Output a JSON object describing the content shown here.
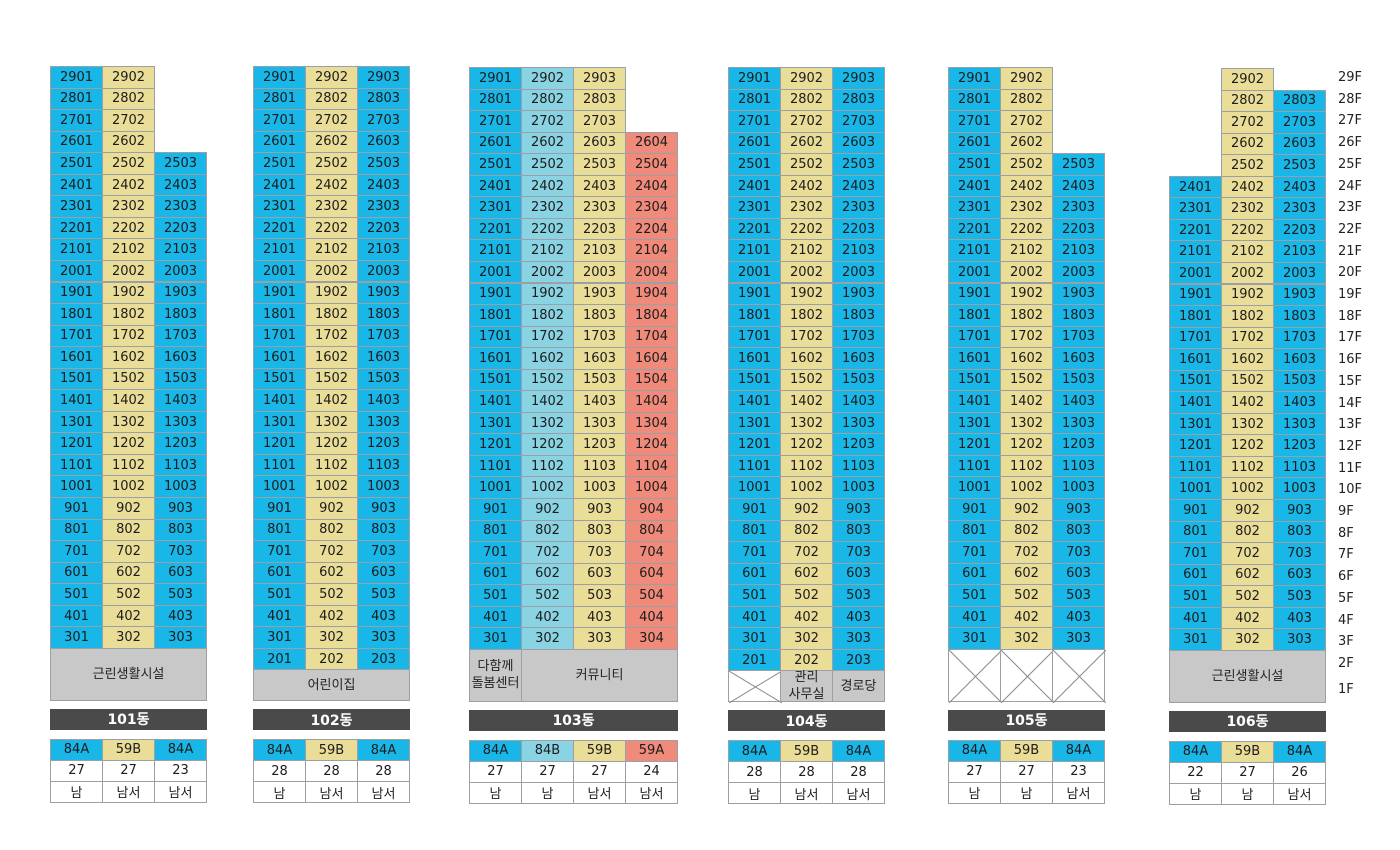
{
  "colors": {
    "84A": "#19b6e8",
    "84B": "#8ad3e2",
    "59B": "#e9dd98",
    "59A": "#f08a7a",
    "facility": "#c8c8c8",
    "title_bg": "#4a4a4a"
  },
  "floors": [
    "29F",
    "28F",
    "27F",
    "26F",
    "25F",
    "24F",
    "23F",
    "22F",
    "21F",
    "20F",
    "19F",
    "18F",
    "17F",
    "16F",
    "15F",
    "14F",
    "13F",
    "12F",
    "11F",
    "10F",
    "9F",
    "8F",
    "7F",
    "6F",
    "5F",
    "4F",
    "3F",
    "2F",
    "1F"
  ],
  "buildings": [
    {
      "name": "101동",
      "columns": [
        {
          "type": "84A",
          "line": "01",
          "top_floor": 29,
          "bottom_floor": 3,
          "households": "27",
          "orientation": "남"
        },
        {
          "type": "59B",
          "line": "02",
          "top_floor": 29,
          "bottom_floor": 3,
          "households": "27",
          "orientation": "남서"
        },
        {
          "type": "84A",
          "line": "03",
          "top_floor": 25,
          "bottom_floor": 3,
          "households": "23",
          "orientation": "남서"
        }
      ],
      "base": [
        {
          "label": "근린생활시설",
          "span": 3,
          "empty": false
        }
      ]
    },
    {
      "name": "102동",
      "columns": [
        {
          "type": "84A",
          "line": "01",
          "top_floor": 29,
          "bottom_floor": 2,
          "households": "28",
          "orientation": "남"
        },
        {
          "type": "59B",
          "line": "02",
          "top_floor": 29,
          "bottom_floor": 2,
          "households": "28",
          "orientation": "남서"
        },
        {
          "type": "84A",
          "line": "03",
          "top_floor": 29,
          "bottom_floor": 2,
          "households": "28",
          "orientation": "남서"
        }
      ],
      "base": [
        {
          "label": "어린이집",
          "span": 3,
          "empty": false
        }
      ]
    },
    {
      "name": "103동",
      "columns": [
        {
          "type": "84A",
          "line": "01",
          "top_floor": 29,
          "bottom_floor": 3,
          "households": "27",
          "orientation": "남"
        },
        {
          "type": "84B",
          "line": "02",
          "top_floor": 29,
          "bottom_floor": 3,
          "households": "27",
          "orientation": "남"
        },
        {
          "type": "59B",
          "line": "03",
          "top_floor": 29,
          "bottom_floor": 3,
          "households": "27",
          "orientation": "남서"
        },
        {
          "type": "59A",
          "line": "04",
          "top_floor": 26,
          "bottom_floor": 3,
          "households": "24",
          "orientation": "남서"
        }
      ],
      "base": [
        {
          "label": "다함께\n돌봄센터",
          "span": 1,
          "empty": false
        },
        {
          "label": "커뮤니티",
          "span": 3,
          "empty": false
        }
      ]
    },
    {
      "name": "104동",
      "columns": [
        {
          "type": "84A",
          "line": "01",
          "top_floor": 29,
          "bottom_floor": 2,
          "households": "28",
          "orientation": "남"
        },
        {
          "type": "59B",
          "line": "02",
          "top_floor": 29,
          "bottom_floor": 2,
          "households": "28",
          "orientation": "남서"
        },
        {
          "type": "84A",
          "line": "03",
          "top_floor": 29,
          "bottom_floor": 2,
          "households": "28",
          "orientation": "남서"
        }
      ],
      "base": [
        {
          "label": "",
          "span": 1,
          "empty": true
        },
        {
          "label": "관리\n사무실",
          "span": 1,
          "empty": false
        },
        {
          "label": "경로당",
          "span": 1,
          "empty": false
        }
      ]
    },
    {
      "name": "105동",
      "columns": [
        {
          "type": "84A",
          "line": "01",
          "top_floor": 29,
          "bottom_floor": 3,
          "households": "27",
          "orientation": "남"
        },
        {
          "type": "59B",
          "line": "02",
          "top_floor": 29,
          "bottom_floor": 3,
          "households": "27",
          "orientation": "남"
        },
        {
          "type": "84A",
          "line": "03",
          "top_floor": 25,
          "bottom_floor": 3,
          "households": "23",
          "orientation": "남서"
        }
      ],
      "base": [
        {
          "label": "",
          "span": 1,
          "empty": true
        },
        {
          "label": "",
          "span": 1,
          "empty": true
        },
        {
          "label": "",
          "span": 1,
          "empty": true
        }
      ]
    },
    {
      "name": "106동",
      "columns": [
        {
          "type": "84A",
          "line": "01",
          "top_floor": 24,
          "bottom_floor": 3,
          "households": "22",
          "orientation": "남"
        },
        {
          "type": "59B",
          "line": "02",
          "top_floor": 29,
          "bottom_floor": 3,
          "households": "27",
          "orientation": "남"
        },
        {
          "type": "84A",
          "line": "03",
          "top_floor": 28,
          "bottom_floor": 3,
          "households": "26",
          "orientation": "남서"
        }
      ],
      "base": [
        {
          "label": "근린생활시설",
          "span": 3,
          "empty": false
        }
      ]
    }
  ]
}
